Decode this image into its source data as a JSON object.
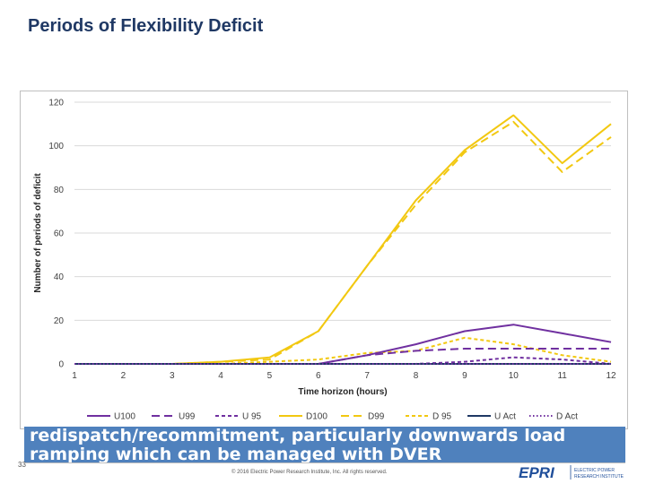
{
  "slide": {
    "title": "Periods of Flexibility Deficit",
    "body_lines": [
      "redispatch/recommitment, particularly downwards load",
      "ramping which can be managed with DVER"
    ],
    "page_number": "33",
    "copyright": "© 2016 Electric Power Research Institute, Inc. All rights reserved.",
    "logo": {
      "mark": "EPRI",
      "lines": [
        "ELECTRIC POWER",
        "RESEARCH INSTITUTE"
      ]
    }
  },
  "colors": {
    "purple": "#7030a0",
    "yellow": "#f2c811",
    "navy": "#1f3864",
    "band": "#4f81bd",
    "gridline": "#d9d9d9"
  },
  "chart_data": {
    "type": "line",
    "xlabel": "Time horizon (hours)",
    "ylabel": "Number of periods of deficit",
    "x": [
      1,
      2,
      3,
      4,
      5,
      6,
      7,
      8,
      9,
      10,
      11,
      12
    ],
    "ylim": [
      0,
      120
    ],
    "yticks": [
      0,
      20,
      40,
      60,
      80,
      100,
      120
    ],
    "grid": "horizontal",
    "legend_position": "bottom",
    "series": [
      {
        "name": "U100",
        "color": "#7030a0",
        "dash": "solid",
        "values": [
          0,
          0,
          0,
          0,
          0,
          0,
          4,
          9,
          15,
          18,
          14,
          10
        ]
      },
      {
        "name": "U99",
        "color": "#7030a0",
        "dash": "longdash",
        "values": [
          0,
          0,
          0,
          0,
          0,
          0,
          4,
          6,
          7,
          7,
          7,
          7
        ]
      },
      {
        "name": "U 95",
        "color": "#7030a0",
        "dash": "shortdash",
        "values": [
          0,
          0,
          0,
          0,
          0,
          0,
          0,
          0,
          1,
          3,
          2,
          0
        ]
      },
      {
        "name": "D100",
        "color": "#f2c811",
        "dash": "solid",
        "values": [
          0,
          0,
          0,
          1,
          3,
          15,
          45,
          75,
          98,
          114,
          92,
          110
        ]
      },
      {
        "name": "D99",
        "color": "#f2c811",
        "dash": "longdash",
        "values": [
          0,
          0,
          0,
          1,
          2,
          15,
          45,
          73,
          97,
          111,
          88,
          104
        ]
      },
      {
        "name": "D 95",
        "color": "#f2c811",
        "dash": "shortdash",
        "values": [
          0,
          0,
          0,
          0,
          1,
          2,
          5,
          6,
          12,
          9,
          4,
          1
        ]
      },
      {
        "name": "U Act",
        "color": "#1f3864",
        "dash": "solid",
        "values": [
          0,
          0,
          0,
          0,
          0,
          0,
          0,
          0,
          0,
          0,
          0,
          0
        ]
      },
      {
        "name": "D Act",
        "color": "#7030a0",
        "dash": "dotted",
        "values": [
          0,
          0,
          0,
          0,
          0,
          0,
          0,
          0,
          0,
          0,
          0,
          0
        ]
      }
    ]
  }
}
